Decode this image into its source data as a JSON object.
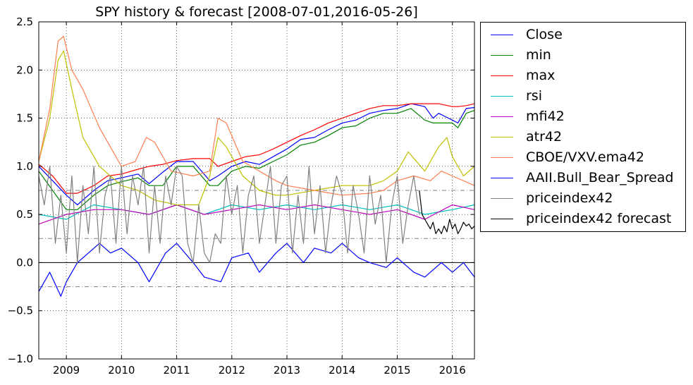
{
  "chart_data": {
    "type": "line",
    "title": "SPY history & forecast [2008-07-01,2016-05-26]",
    "xlabel": "",
    "ylabel": "",
    "xlim": [
      2008.5,
      2016.4
    ],
    "ylim": [
      -1.0,
      2.5
    ],
    "grid": true,
    "legend_position": "outside-right",
    "x_ticks": [
      2009,
      2010,
      2011,
      2012,
      2013,
      2014,
      2015,
      2016
    ],
    "x_tick_labels": [
      "2009",
      "2010",
      "2011",
      "2012",
      "2013",
      "2014",
      "2015",
      "2016"
    ],
    "y_ticks": [
      -1.0,
      -0.5,
      0.0,
      0.5,
      1.0,
      1.5,
      2.0,
      2.5
    ],
    "y_tick_labels": [
      "−1.0",
      "−0.5",
      "0.0",
      "0.5",
      "1.0",
      "1.5",
      "2.0",
      "2.5"
    ],
    "reference_lines": [
      {
        "y": 0.75,
        "style": "dash-dot",
        "color": "#808080"
      },
      {
        "y": 0.25,
        "style": "dash-dot",
        "color": "#808080"
      },
      {
        "y": -0.25,
        "style": "dash-dot",
        "color": "#808080"
      },
      {
        "y": 0.0,
        "style": "solid",
        "color": "#000000"
      }
    ],
    "series": [
      {
        "name": "Close",
        "color": "#0000ff",
        "x": [
          2008.5,
          2008.75,
          2009.0,
          2009.2,
          2009.5,
          2009.75,
          2010.0,
          2010.3,
          2010.5,
          2010.75,
          2011.0,
          2011.3,
          2011.6,
          2011.75,
          2012.0,
          2012.25,
          2012.5,
          2012.75,
          2013.0,
          2013.25,
          2013.5,
          2013.75,
          2014.0,
          2014.25,
          2014.5,
          2014.75,
          2015.0,
          2015.25,
          2015.5,
          2015.65,
          2015.75,
          2016.0,
          2016.1,
          2016.25,
          2016.4
        ],
        "y": [
          1.0,
          0.85,
          0.7,
          0.6,
          0.75,
          0.85,
          0.88,
          0.92,
          0.82,
          0.94,
          1.05,
          1.05,
          0.85,
          0.9,
          1.0,
          1.05,
          1.02,
          1.1,
          1.18,
          1.28,
          1.3,
          1.38,
          1.45,
          1.48,
          1.55,
          1.58,
          1.6,
          1.65,
          1.62,
          1.5,
          1.55,
          1.48,
          1.45,
          1.6,
          1.61
        ]
      },
      {
        "name": "min",
        "color": "#008000",
        "x": [
          2008.5,
          2008.75,
          2009.0,
          2009.2,
          2009.5,
          2009.75,
          2010.0,
          2010.3,
          2010.5,
          2010.75,
          2011.0,
          2011.3,
          2011.6,
          2011.75,
          2012.0,
          2012.25,
          2012.5,
          2012.75,
          2013.0,
          2013.25,
          2013.5,
          2013.75,
          2014.0,
          2014.25,
          2014.5,
          2014.75,
          2015.0,
          2015.25,
          2015.5,
          2015.65,
          2015.75,
          2016.0,
          2016.1,
          2016.25,
          2016.4
        ],
        "y": [
          0.95,
          0.75,
          0.55,
          0.55,
          0.7,
          0.8,
          0.84,
          0.88,
          0.8,
          0.8,
          1.0,
          1.0,
          0.8,
          0.8,
          0.95,
          1.0,
          0.98,
          1.05,
          1.12,
          1.22,
          1.25,
          1.32,
          1.4,
          1.42,
          1.5,
          1.55,
          1.55,
          1.6,
          1.48,
          1.45,
          1.45,
          1.45,
          1.4,
          1.55,
          1.58
        ]
      },
      {
        "name": "max",
        "color": "#ff0000",
        "x": [
          2008.5,
          2008.75,
          2009.0,
          2009.2,
          2009.5,
          2009.75,
          2010.0,
          2010.3,
          2010.5,
          2010.75,
          2011.0,
          2011.3,
          2011.6,
          2011.75,
          2012.0,
          2012.25,
          2012.5,
          2012.75,
          2013.0,
          2013.25,
          2013.5,
          2013.75,
          2014.0,
          2014.25,
          2014.5,
          2014.75,
          2015.0,
          2015.25,
          2015.5,
          2015.65,
          2015.75,
          2016.0,
          2016.1,
          2016.25,
          2016.4
        ],
        "y": [
          1.02,
          0.9,
          0.72,
          0.72,
          0.8,
          0.9,
          0.92,
          0.97,
          1.0,
          1.02,
          1.06,
          1.08,
          1.08,
          1.0,
          1.05,
          1.1,
          1.12,
          1.18,
          1.25,
          1.32,
          1.38,
          1.45,
          1.5,
          1.55,
          1.6,
          1.63,
          1.63,
          1.65,
          1.65,
          1.65,
          1.65,
          1.62,
          1.62,
          1.63,
          1.65
        ]
      },
      {
        "name": "rsi",
        "color": "#00bfbf",
        "x": [
          2008.5,
          2009.0,
          2009.5,
          2010.0,
          2010.5,
          2011.0,
          2011.5,
          2012.0,
          2012.5,
          2013.0,
          2013.5,
          2014.0,
          2014.5,
          2015.0,
          2015.5,
          2016.0,
          2016.4
        ],
        "y": [
          0.5,
          0.45,
          0.6,
          0.55,
          0.5,
          0.6,
          0.5,
          0.6,
          0.55,
          0.6,
          0.55,
          0.6,
          0.55,
          0.6,
          0.5,
          0.55,
          0.6
        ]
      },
      {
        "name": "mfi42",
        "color": "#bf00bf",
        "x": [
          2008.5,
          2009.0,
          2009.5,
          2010.0,
          2010.5,
          2011.0,
          2011.5,
          2012.0,
          2012.5,
          2013.0,
          2013.5,
          2014.0,
          2014.5,
          2015.0,
          2015.5,
          2016.0,
          2016.4
        ],
        "y": [
          0.4,
          0.5,
          0.55,
          0.55,
          0.5,
          0.6,
          0.5,
          0.55,
          0.6,
          0.55,
          0.6,
          0.55,
          0.5,
          0.55,
          0.45,
          0.6,
          0.55
        ]
      },
      {
        "name": "atr42",
        "color": "#bfbf00",
        "x": [
          2008.5,
          2008.7,
          2008.85,
          2008.95,
          2009.1,
          2009.3,
          2009.6,
          2010.0,
          2010.3,
          2010.6,
          2011.0,
          2011.4,
          2011.6,
          2011.75,
          2011.9,
          2012.2,
          2012.5,
          2012.8,
          2013.0,
          2013.5,
          2014.0,
          2014.5,
          2014.75,
          2015.0,
          2015.2,
          2015.5,
          2015.75,
          2015.9,
          2016.0,
          2016.2,
          2016.4
        ],
        "y": [
          1.05,
          1.5,
          2.1,
          2.2,
          1.8,
          1.3,
          1.0,
          0.8,
          0.75,
          0.65,
          0.6,
          0.6,
          0.9,
          1.3,
          1.2,
          0.9,
          0.75,
          0.7,
          0.7,
          0.75,
          0.8,
          0.8,
          0.85,
          0.95,
          1.15,
          0.95,
          1.2,
          1.3,
          1.1,
          0.9,
          1.0
        ]
      },
      {
        "name": "CBOE/VXV.ema42",
        "color": "#ff7f50",
        "x": [
          2008.5,
          2008.7,
          2008.85,
          2008.95,
          2009.1,
          2009.3,
          2009.6,
          2010.0,
          2010.25,
          2010.45,
          2010.6,
          2010.9,
          2011.3,
          2011.6,
          2011.75,
          2011.9,
          2012.2,
          2012.5,
          2012.8,
          2013.0,
          2013.5,
          2014.0,
          2014.5,
          2014.75,
          2015.0,
          2015.3,
          2015.6,
          2015.8,
          2016.0,
          2016.2,
          2016.4
        ],
        "y": [
          1.05,
          1.6,
          2.3,
          2.35,
          2.0,
          1.8,
          1.4,
          1.0,
          1.05,
          1.3,
          1.25,
          0.95,
          0.9,
          0.95,
          1.5,
          1.45,
          1.05,
          0.95,
          0.85,
          0.8,
          0.75,
          0.7,
          0.72,
          0.75,
          0.85,
          0.9,
          0.85,
          0.95,
          0.9,
          0.85,
          0.8
        ]
      },
      {
        "name": "AAII.Bull_Bear_Spread",
        "color": "#0000ff",
        "x": [
          2008.5,
          2008.7,
          2008.9,
          2009.0,
          2009.2,
          2009.4,
          2009.6,
          2009.8,
          2010.0,
          2010.3,
          2010.5,
          2010.8,
          2011.0,
          2011.3,
          2011.5,
          2011.8,
          2012.0,
          2012.3,
          2012.5,
          2012.8,
          2013.0,
          2013.3,
          2013.5,
          2013.8,
          2014.0,
          2014.3,
          2014.5,
          2014.8,
          2015.0,
          2015.3,
          2015.5,
          2015.8,
          2016.0,
          2016.2,
          2016.4
        ],
        "y": [
          -0.3,
          -0.1,
          -0.35,
          -0.2,
          0.0,
          0.1,
          0.2,
          0.1,
          0.15,
          0.0,
          -0.2,
          0.1,
          0.2,
          0.0,
          -0.15,
          -0.2,
          0.05,
          0.1,
          -0.1,
          0.1,
          0.2,
          0.0,
          0.15,
          0.1,
          0.2,
          0.05,
          0.0,
          -0.05,
          0.05,
          -0.1,
          -0.15,
          0.0,
          -0.1,
          0.0,
          -0.15
        ]
      },
      {
        "name": "priceindex42",
        "color": "#808080",
        "x": [
          2008.5,
          2008.6,
          2008.7,
          2008.8,
          2008.9,
          2009.0,
          2009.1,
          2009.2,
          2009.3,
          2009.4,
          2009.5,
          2009.6,
          2009.7,
          2009.8,
          2009.9,
          2010.0,
          2010.1,
          2010.2,
          2010.3,
          2010.4,
          2010.5,
          2010.6,
          2010.7,
          2010.8,
          2010.9,
          2011.0,
          2011.1,
          2011.2,
          2011.3,
          2011.4,
          2011.5,
          2011.6,
          2011.7,
          2011.8,
          2011.9,
          2012.0,
          2012.1,
          2012.2,
          2012.3,
          2012.4,
          2012.5,
          2012.6,
          2012.7,
          2012.8,
          2012.9,
          2013.0,
          2013.1,
          2013.2,
          2013.3,
          2013.4,
          2013.5,
          2013.6,
          2013.7,
          2013.8,
          2013.9,
          2014.0,
          2014.1,
          2014.2,
          2014.3,
          2014.4,
          2014.5,
          2014.6,
          2014.7,
          2014.8,
          2014.9,
          2015.0,
          2015.1,
          2015.2,
          2015.3,
          2015.4
        ],
        "y": [
          0.9,
          0.6,
          1.0,
          0.2,
          0.7,
          0.1,
          0.9,
          0.0,
          0.8,
          0.3,
          1.0,
          0.1,
          0.7,
          0.9,
          0.2,
          1.0,
          0.3,
          0.9,
          0.6,
          1.0,
          0.1,
          0.8,
          0.2,
          0.9,
          0.6,
          1.0,
          0.9,
          0.2,
          0.0,
          0.6,
          0.1,
          0.0,
          0.3,
          0.2,
          0.9,
          0.5,
          0.8,
          0.1,
          0.7,
          0.9,
          0.2,
          0.6,
          1.0,
          0.2,
          0.8,
          0.9,
          0.1,
          0.7,
          0.2,
          1.0,
          0.3,
          0.8,
          0.1,
          0.6,
          0.9,
          0.7,
          0.1,
          0.8,
          0.5,
          0.1,
          0.9,
          0.4,
          0.7,
          0.0,
          0.6,
          0.9,
          0.2,
          0.6,
          0.9,
          0.5
        ]
      },
      {
        "name": "priceindex42 forecast",
        "color": "#000000",
        "x": [
          2015.4,
          2015.45,
          2015.5,
          2015.55,
          2015.6,
          2015.65,
          2015.7,
          2015.75,
          2015.8,
          2015.85,
          2015.9,
          2015.95,
          2016.0,
          2016.05,
          2016.1,
          2016.15,
          2016.2,
          2016.25,
          2016.3,
          2016.35,
          2016.4
        ],
        "y": [
          0.75,
          0.5,
          0.45,
          0.4,
          0.35,
          0.42,
          0.3,
          0.35,
          0.3,
          0.38,
          0.32,
          0.45,
          0.35,
          0.4,
          0.3,
          0.35,
          0.42,
          0.38,
          0.4,
          0.35,
          0.38
        ]
      }
    ]
  }
}
